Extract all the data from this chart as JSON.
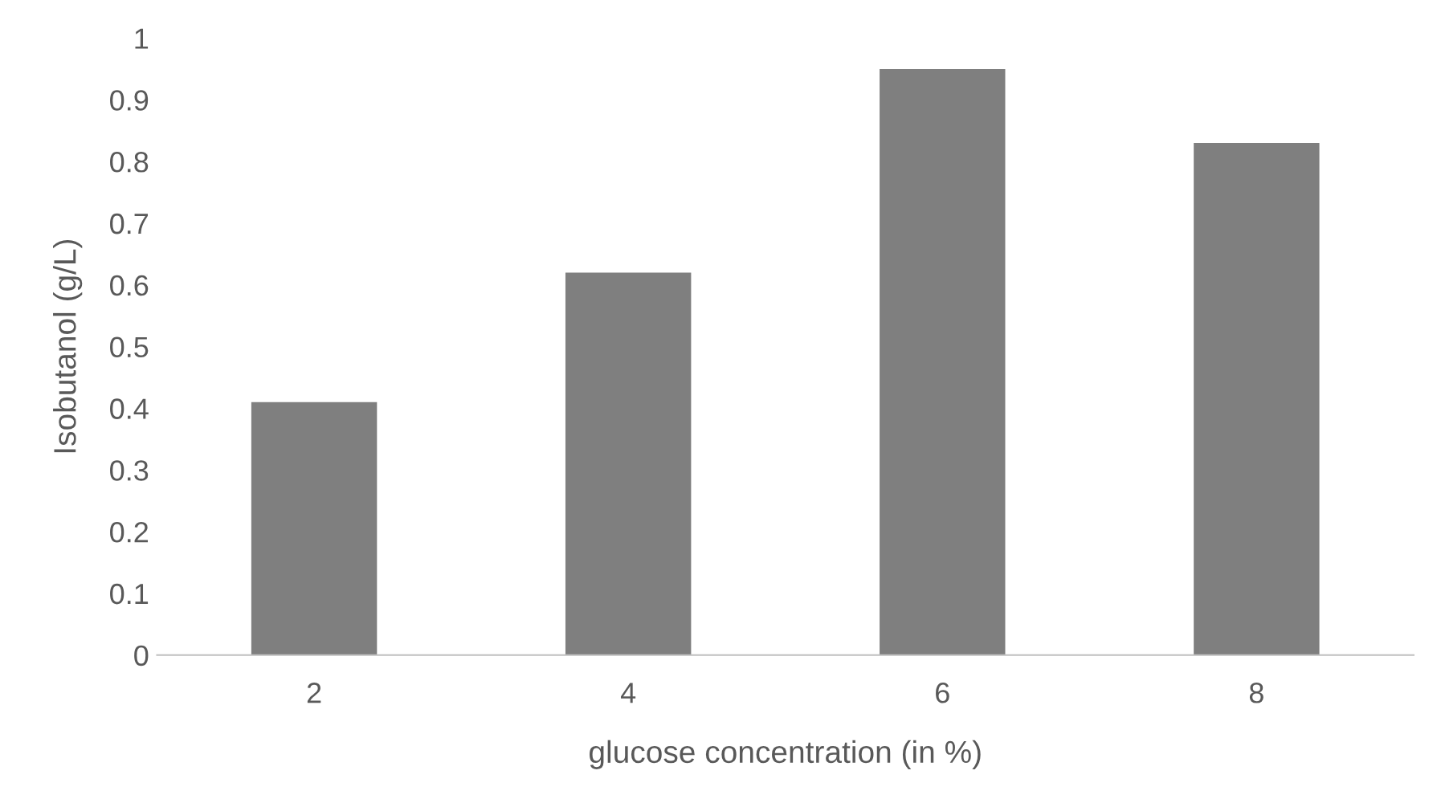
{
  "chart_data": {
    "type": "bar",
    "xlabel": "glucose concentration (in %)",
    "ylabel": "Isobutanol (g/L)",
    "categories": [
      "2",
      "4",
      "6",
      "8"
    ],
    "values": [
      0.41,
      0.62,
      0.95,
      0.83
    ],
    "color": "#7f7f7f",
    "ylim": [
      0,
      1
    ],
    "yticks": [
      0,
      0.1,
      0.2,
      0.3,
      0.4,
      0.5,
      0.6,
      0.7,
      0.8,
      0.9,
      1
    ],
    "grid": false,
    "legend": false
  }
}
